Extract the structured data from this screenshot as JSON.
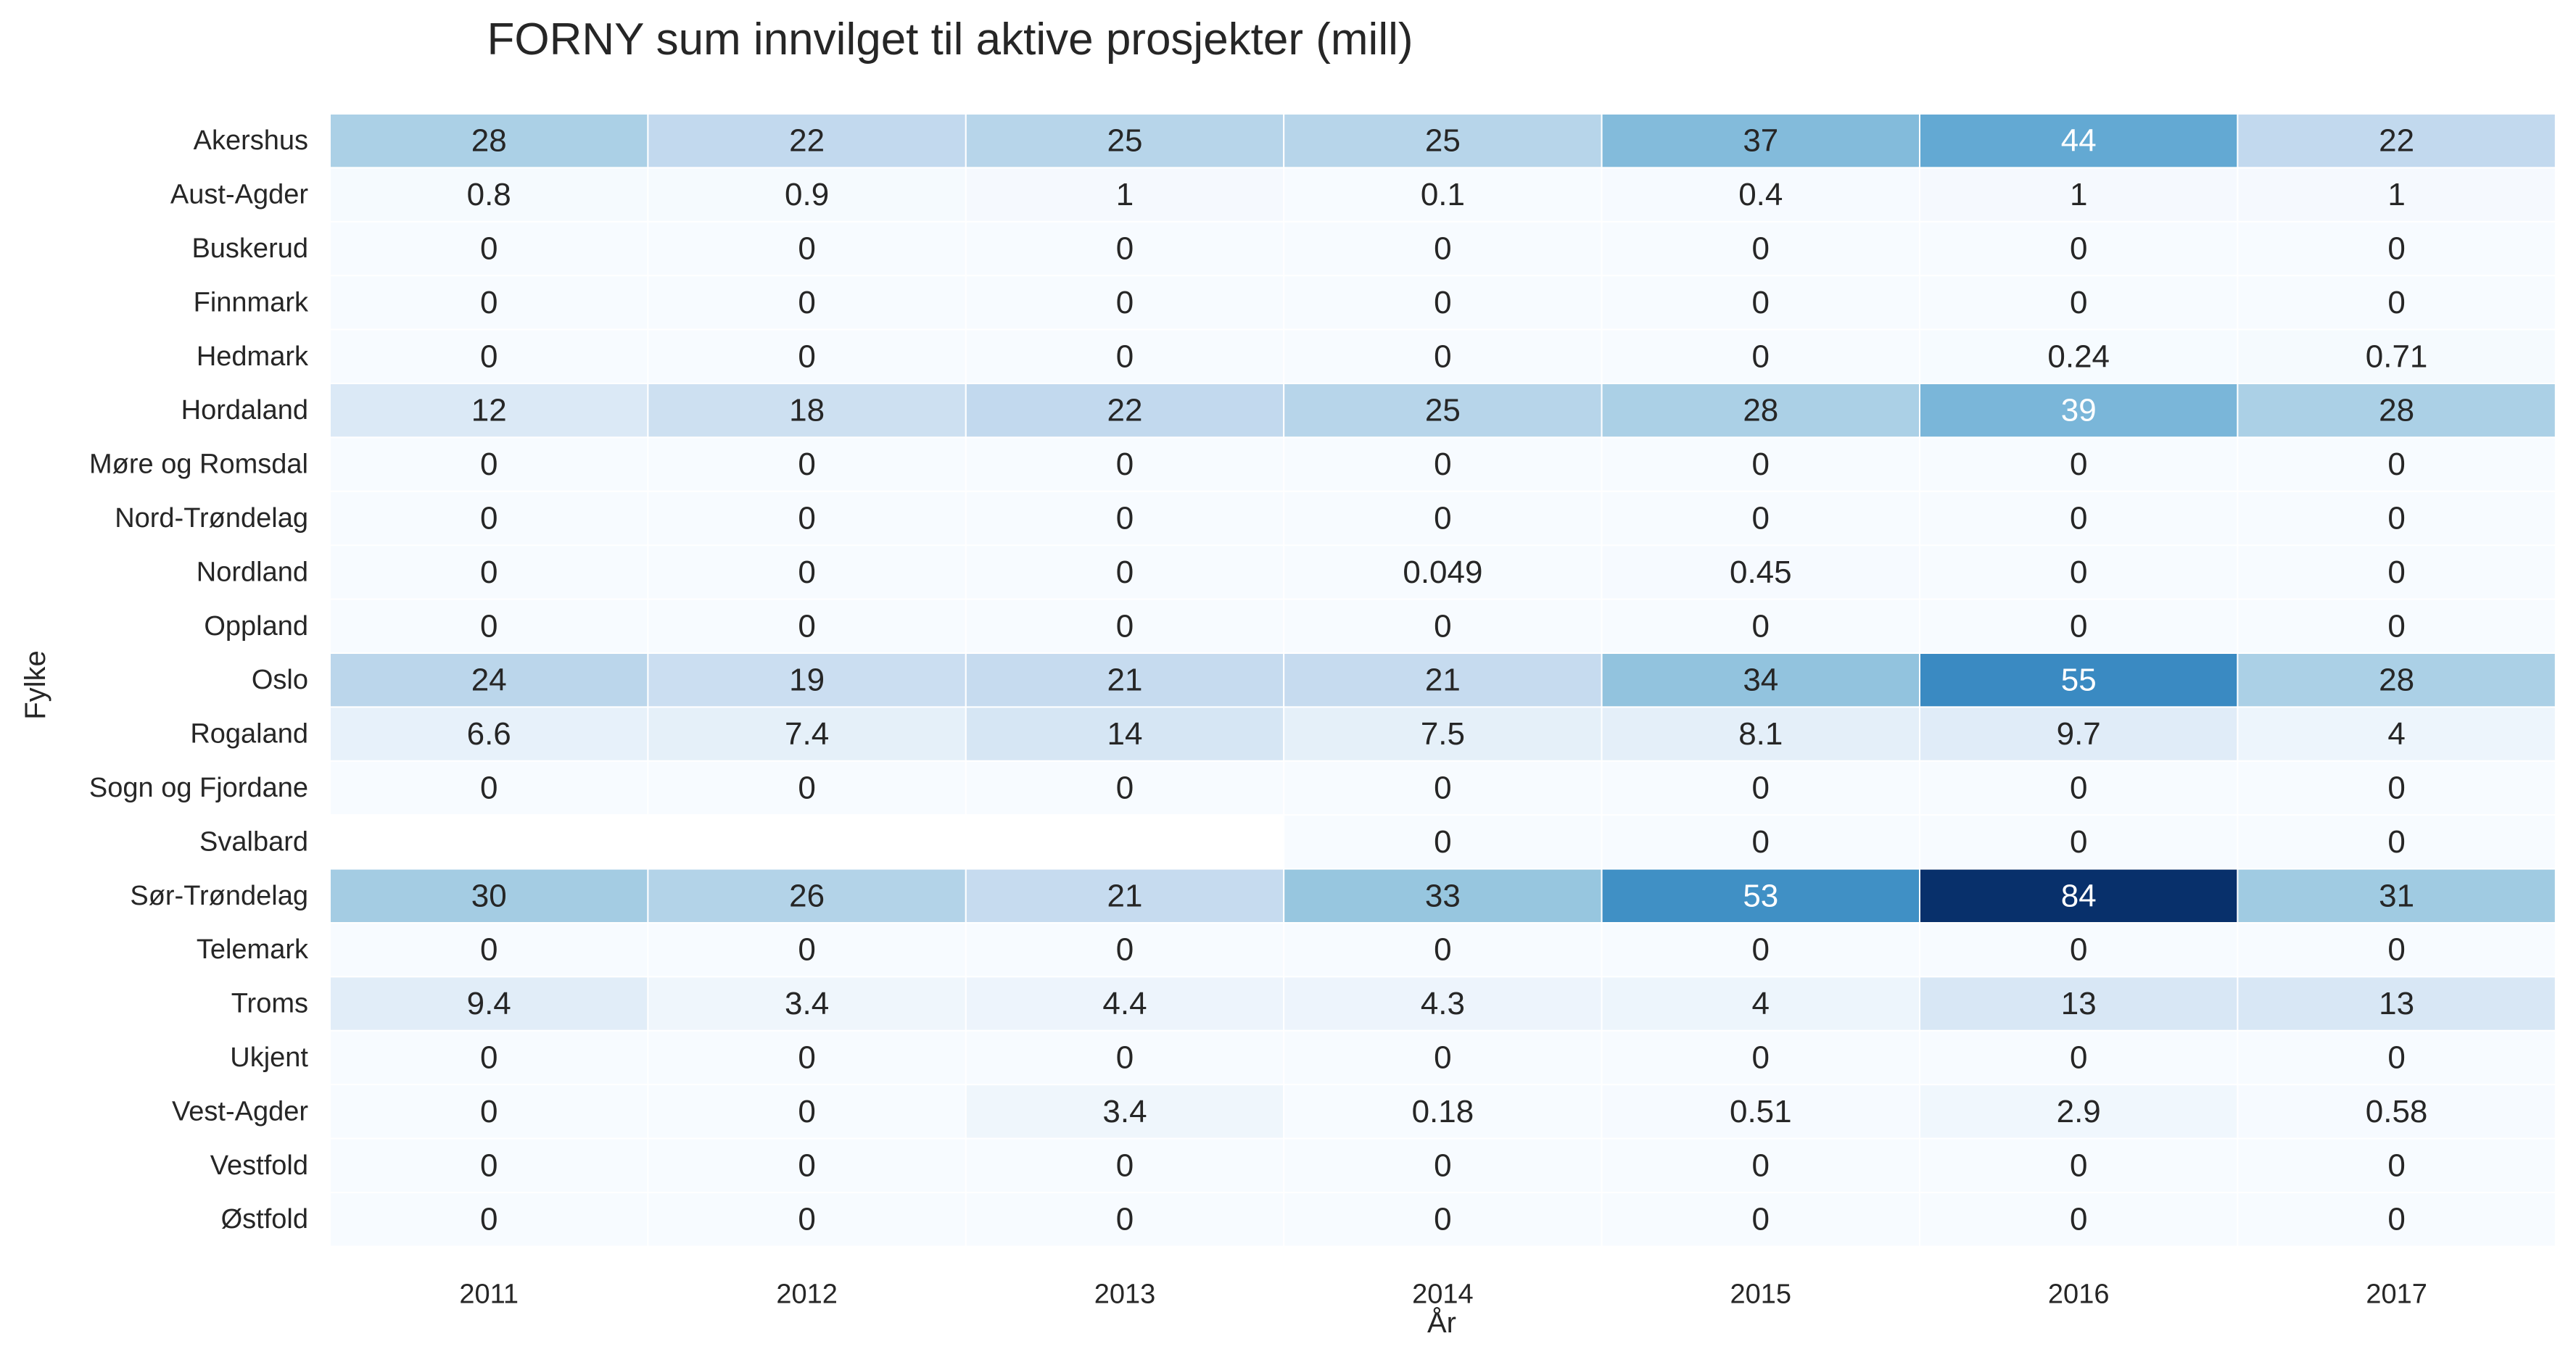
{
  "chart_data": {
    "type": "heatmap",
    "title": "FORNY sum innvilget til aktive prosjekter (mill)",
    "xlabel": "År",
    "ylabel": "Fylke",
    "colormap": "Blues",
    "vmin": 0,
    "vmax": 84,
    "x": [
      "2011",
      "2012",
      "2013",
      "2014",
      "2015",
      "2016",
      "2017"
    ],
    "y": [
      "Akershus",
      "Aust-Agder",
      "Buskerud",
      "Finnmark",
      "Hedmark",
      "Hordaland",
      "Møre og Romsdal",
      "Nord-Trøndelag",
      "Nordland",
      "Oppland",
      "Oslo",
      "Rogaland",
      "Sogn og Fjordane",
      "Svalbard",
      "Sør-Trøndelag",
      "Telemark",
      "Troms",
      "Ukjent",
      "Vest-Agder",
      "Vestfold",
      "Østfold"
    ],
    "values": [
      [
        28,
        22,
        25,
        25,
        37,
        44,
        22
      ],
      [
        0.8,
        0.9,
        1,
        0.1,
        0.4,
        1,
        1
      ],
      [
        0,
        0,
        0,
        0,
        0,
        0,
        0
      ],
      [
        0,
        0,
        0,
        0,
        0,
        0,
        0
      ],
      [
        0,
        0,
        0,
        0,
        0,
        0.24,
        0.71
      ],
      [
        12,
        18,
        22,
        25,
        28,
        39,
        28
      ],
      [
        0,
        0,
        0,
        0,
        0,
        0,
        0
      ],
      [
        0,
        0,
        0,
        0,
        0,
        0,
        0
      ],
      [
        0,
        0,
        0,
        0.049,
        0.45,
        0,
        0
      ],
      [
        0,
        0,
        0,
        0,
        0,
        0,
        0
      ],
      [
        24,
        19,
        21,
        21,
        34,
        55,
        28
      ],
      [
        6.6,
        7.4,
        14,
        7.5,
        8.1,
        9.7,
        4
      ],
      [
        0,
        0,
        0,
        0,
        0,
        0,
        0
      ],
      [
        null,
        null,
        null,
        0,
        0,
        0,
        0
      ],
      [
        30,
        26,
        21,
        33,
        53,
        84,
        31
      ],
      [
        0,
        0,
        0,
        0,
        0,
        0,
        0
      ],
      [
        9.4,
        3.4,
        4.4,
        4.3,
        4,
        13,
        13
      ],
      [
        0,
        0,
        0,
        0,
        0,
        0,
        0
      ],
      [
        0,
        0,
        3.4,
        0.18,
        0.51,
        2.9,
        0.58
      ],
      [
        0,
        0,
        0,
        0,
        0,
        0,
        0
      ],
      [
        0,
        0,
        0,
        0,
        0,
        0,
        0
      ]
    ],
    "grid": false,
    "colorbar": false
  }
}
